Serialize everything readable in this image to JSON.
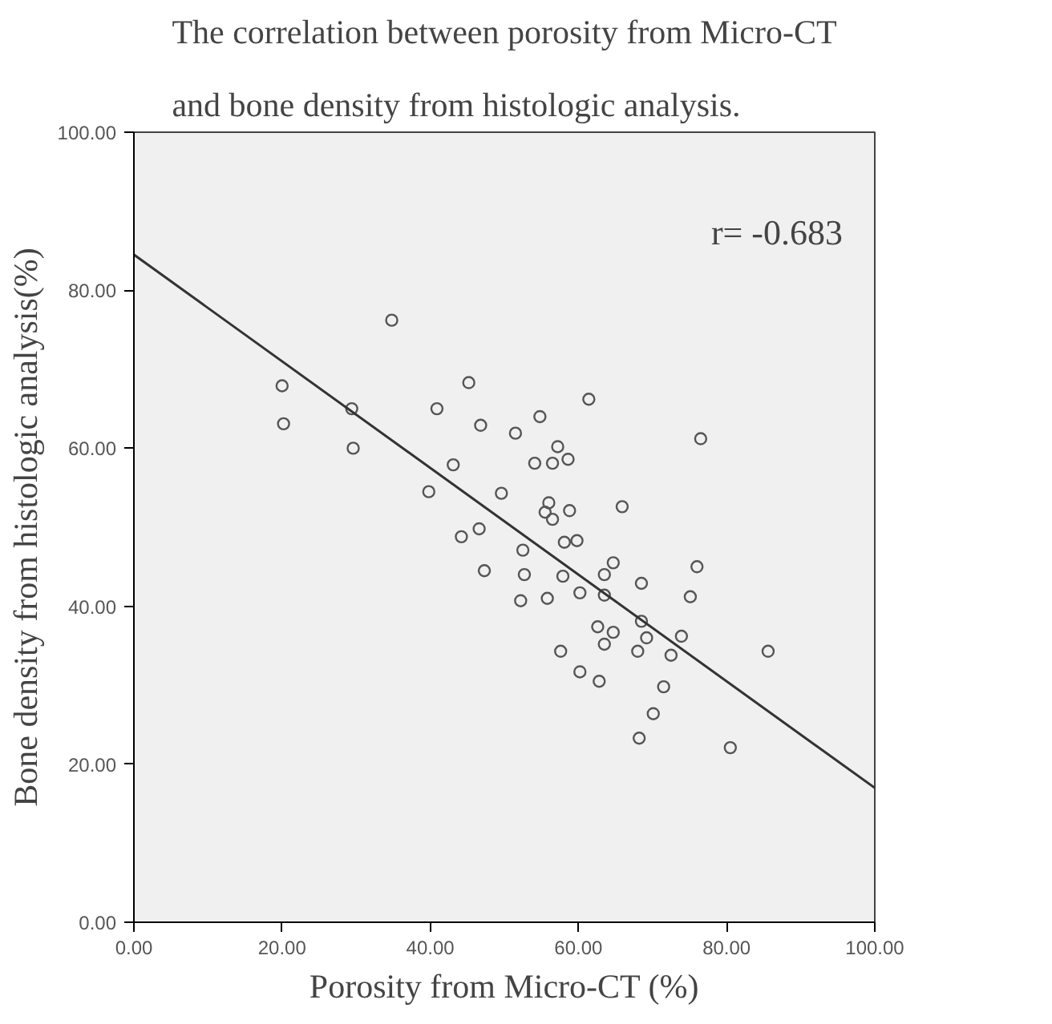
{
  "chart_data": {
    "type": "scatter",
    "title": "The correlation between porosity from Micro-CT\nand bone density from histologic analysis.",
    "xlabel": "Porosity from Micro-CT (%)",
    "ylabel": "Bone density from histologic analysis(%)",
    "annotations": [
      "r= -0.683"
    ],
    "xlim": [
      0,
      100
    ],
    "ylim": [
      0,
      100
    ],
    "xticks": [
      {
        "value": 0,
        "label": "0.00"
      },
      {
        "value": 20,
        "label": "20.00"
      },
      {
        "value": 40,
        "label": "40.00"
      },
      {
        "value": 60,
        "label": "60.00"
      },
      {
        "value": 80,
        "label": "80.00"
      },
      {
        "value": 100,
        "label": "100.00"
      }
    ],
    "yticks": [
      {
        "value": 0,
        "label": "0.00"
      },
      {
        "value": 20,
        "label": "20.00"
      },
      {
        "value": 40,
        "label": "40.00"
      },
      {
        "value": 60,
        "label": "60.00"
      },
      {
        "value": 80,
        "label": "80.00"
      },
      {
        "value": 100,
        "label": "100.00"
      }
    ],
    "grid": false,
    "marker": "circle",
    "series": [
      {
        "color": "#555555",
        "x": [
          34.8,
          20.0,
          20.2,
          29.4,
          29.6,
          45.2,
          40.9,
          46.8,
          51.5,
          54.8,
          57.2,
          54.1,
          56.5,
          43.1,
          39.8,
          49.6,
          56.0,
          55.5,
          56.5,
          46.6,
          44.2,
          52.5,
          58.1,
          47.3,
          52.7,
          57.9,
          52.2,
          55.8,
          57.6,
          61.4,
          76.5,
          58.6,
          65.9,
          58.8,
          59.8,
          64.7,
          63.5,
          60.2,
          63.5,
          68.5,
          76.0,
          75.1,
          68.5,
          69.2,
          62.6,
          64.7,
          63.5,
          73.9,
          72.5,
          68.0,
          85.6,
          60.2,
          62.8,
          71.5,
          70.1,
          68.2,
          80.5
        ],
        "values": [
          76.2,
          67.9,
          63.1,
          65.0,
          60.0,
          68.3,
          65.0,
          62.9,
          61.9,
          64.0,
          60.2,
          58.1,
          58.1,
          57.9,
          54.5,
          54.3,
          53.1,
          51.9,
          51.0,
          49.8,
          48.8,
          47.1,
          48.1,
          44.5,
          44.0,
          43.8,
          40.7,
          41.0,
          34.3,
          66.2,
          61.2,
          58.6,
          52.6,
          52.1,
          48.3,
          45.5,
          44.0,
          41.7,
          41.4,
          42.9,
          45.0,
          41.2,
          38.1,
          36.0,
          37.4,
          36.7,
          35.2,
          36.2,
          33.8,
          34.3,
          34.3,
          31.7,
          30.5,
          29.8,
          26.4,
          23.3,
          22.1
        ]
      },
      {
        "type": "line",
        "color": "#333333",
        "marker": "none",
        "x": [
          0,
          100
        ],
        "values": [
          84.5,
          17.0
        ]
      }
    ]
  }
}
